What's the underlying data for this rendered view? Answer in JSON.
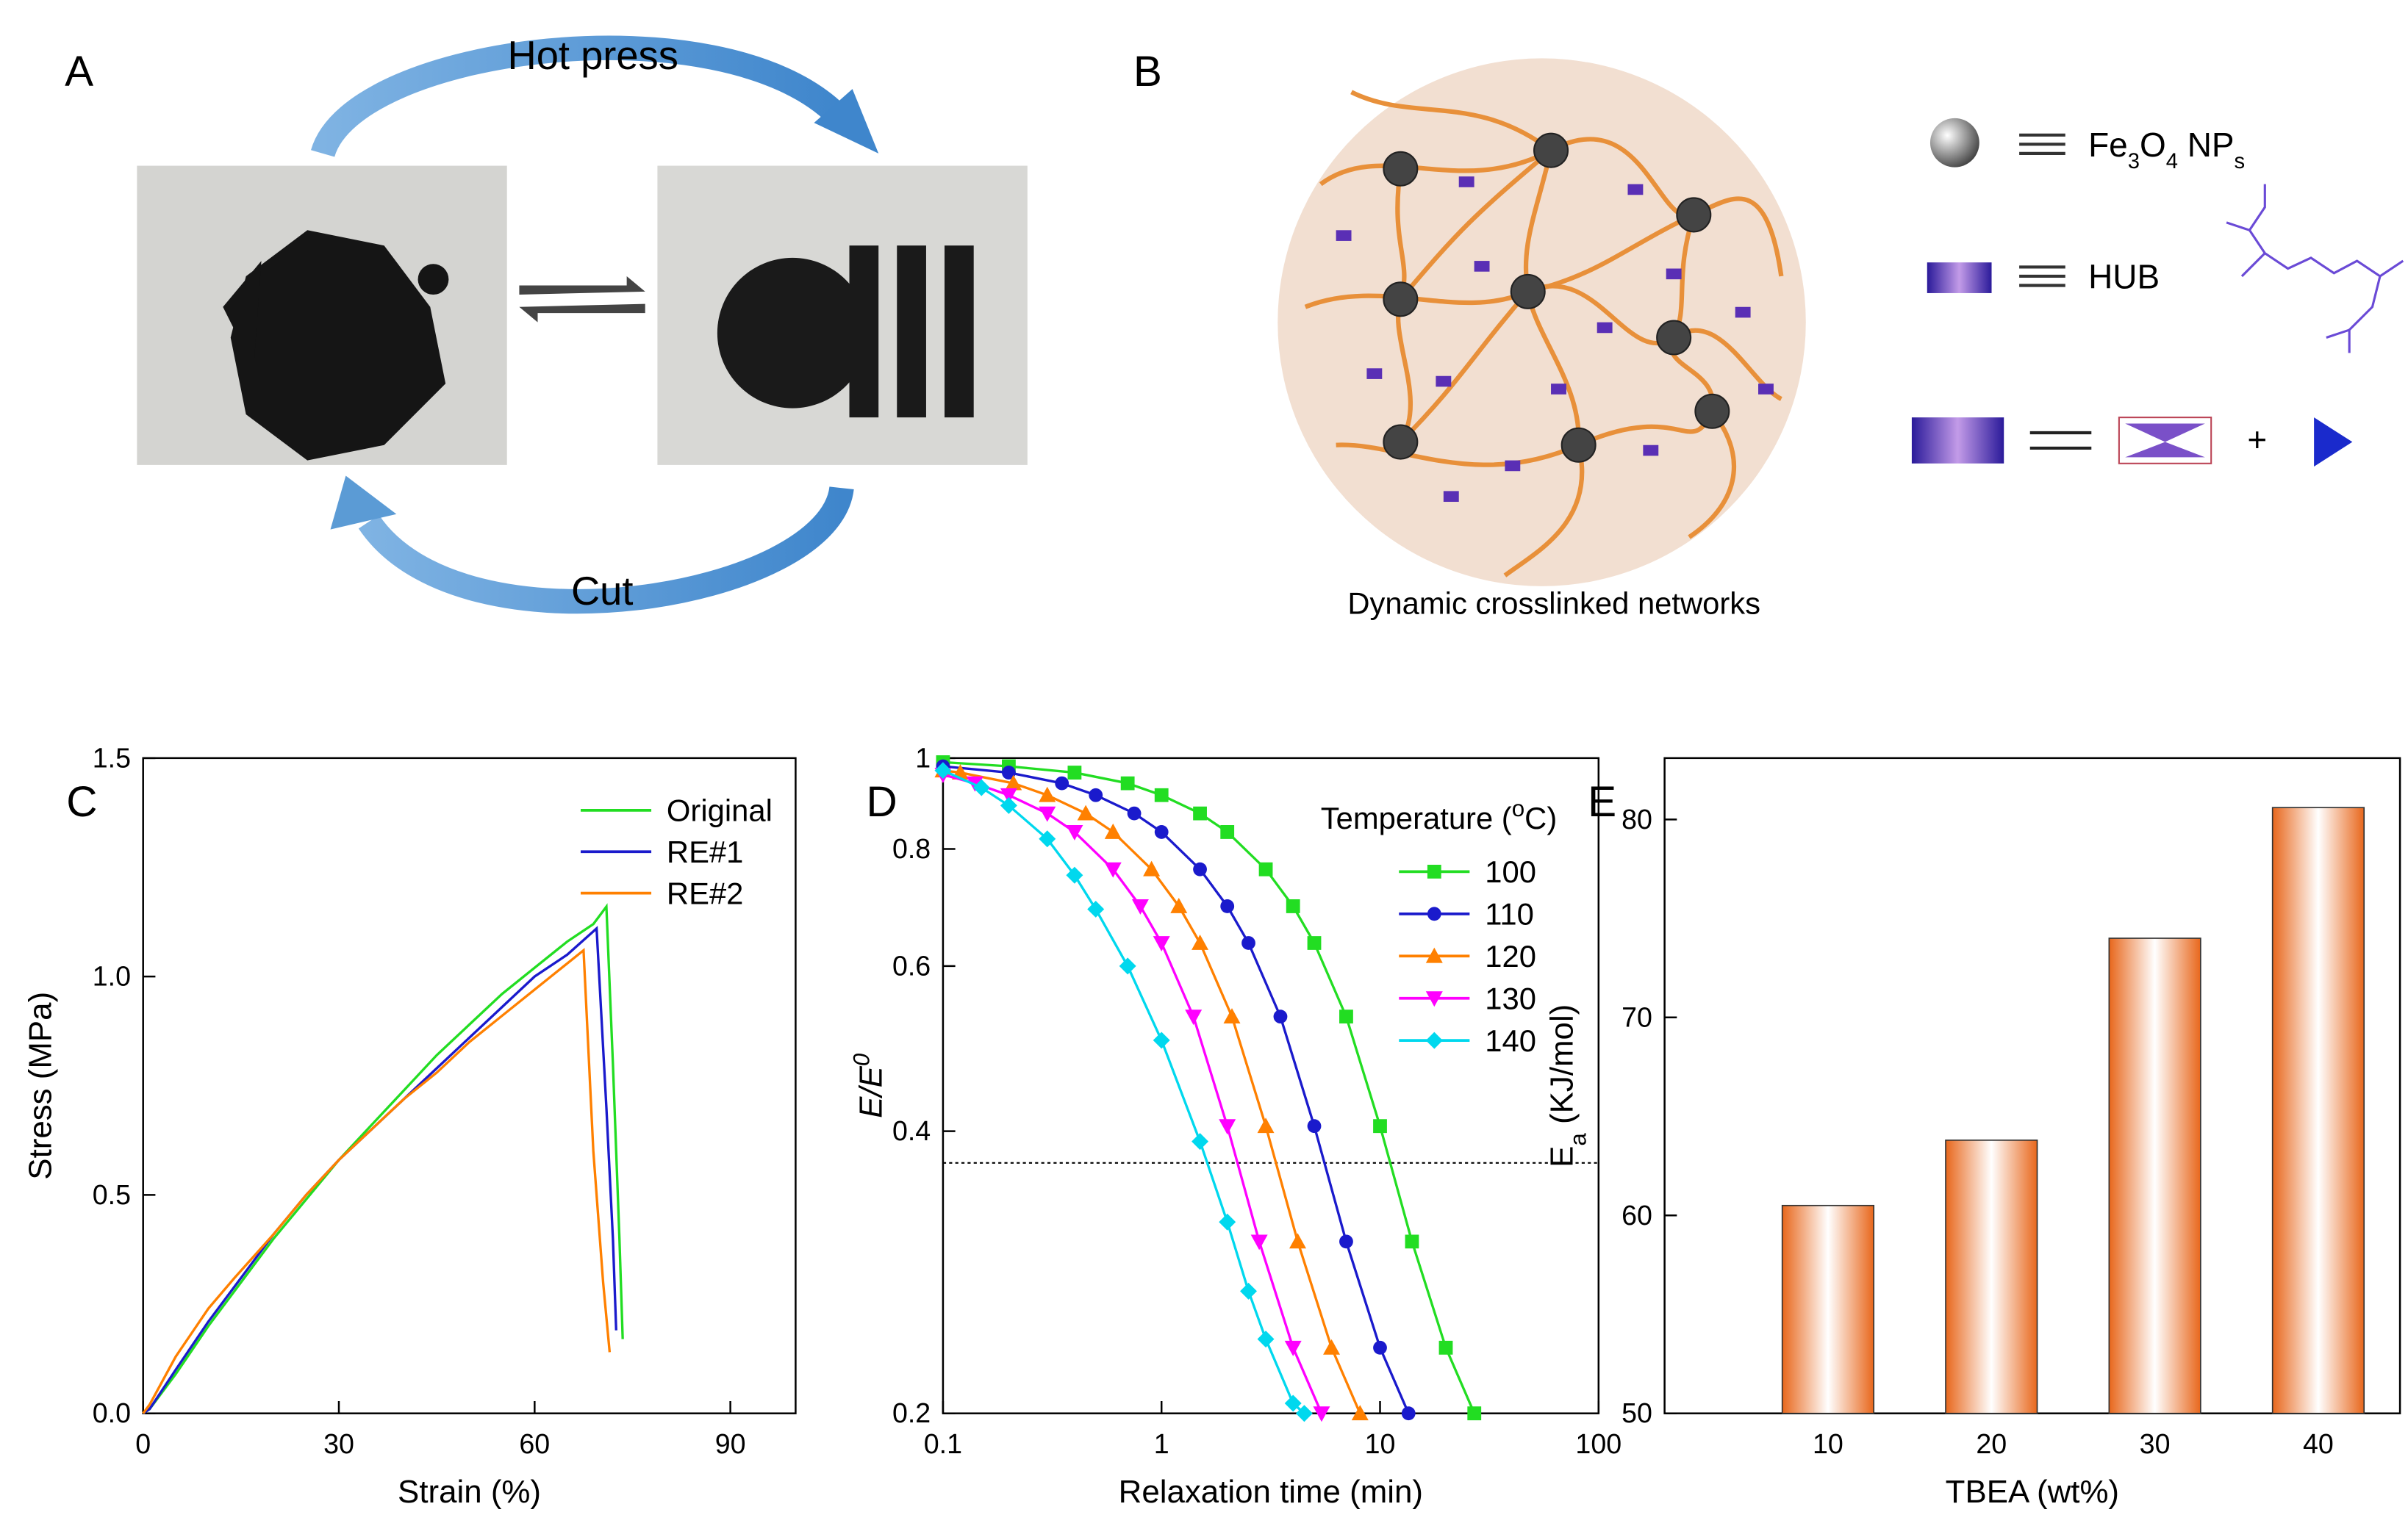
{
  "panel_a": {
    "label": "A",
    "top_arrow": "Hot press",
    "bottom_arrow": "Cut"
  },
  "panel_b": {
    "label": "B",
    "fe3o4": [
      "Fe",
      "3",
      "O",
      "4",
      " NP",
      "s"
    ],
    "hub": "HUB",
    "plus": "+",
    "caption": "Dynamic crosslinked networks"
  },
  "chart_data": [
    {
      "type": "line",
      "label": "C",
      "xlabel": "Strain (%)",
      "ylabel": "Stress (MPa)",
      "xlim": [
        0,
        100
      ],
      "ylim": [
        0,
        1.5
      ],
      "xticks": [
        0,
        30,
        60,
        90
      ],
      "yticks": [
        {
          "value": 0,
          "label": "0.0"
        },
        0.5,
        {
          "value": 1,
          "label": "1.0"
        },
        1.5
      ],
      "series": [
        {
          "name": "Original",
          "color": "#22dd22",
          "x": [
            0,
            1,
            5,
            10,
            15,
            20,
            25,
            30,
            35,
            40,
            45,
            50,
            55,
            60,
            65,
            69,
            71,
            72,
            73,
            73.5
          ],
          "values": [
            0,
            0.01,
            0.09,
            0.2,
            0.3,
            0.4,
            0.49,
            0.58,
            0.66,
            0.74,
            0.82,
            0.89,
            0.96,
            1.02,
            1.08,
            1.12,
            1.16,
            0.8,
            0.4,
            0.17
          ]
        },
        {
          "name": "RE#1",
          "color": "#1a1acc",
          "x": [
            0,
            1,
            5,
            10,
            15,
            20,
            25,
            30,
            35,
            40,
            45,
            50,
            55,
            60,
            65,
            69.5,
            71,
            72,
            72.5
          ],
          "values": [
            0,
            0.01,
            0.1,
            0.21,
            0.31,
            0.41,
            0.5,
            0.58,
            0.65,
            0.72,
            0.79,
            0.86,
            0.93,
            1.0,
            1.05,
            1.11,
            0.7,
            0.4,
            0.19
          ]
        },
        {
          "name": "RE#2",
          "color": "#ff8000",
          "x": [
            0,
            1,
            5,
            10,
            14,
            20,
            25,
            30,
            35,
            40,
            45,
            50,
            55,
            60,
            65,
            67.5,
            69,
            70.5,
            71.5
          ],
          "values": [
            0,
            0.02,
            0.13,
            0.24,
            0.31,
            0.41,
            0.5,
            0.58,
            0.65,
            0.72,
            0.78,
            0.85,
            0.91,
            0.97,
            1.03,
            1.06,
            0.6,
            0.3,
            0.14
          ]
        }
      ],
      "legend": "upper right"
    },
    {
      "type": "line",
      "label": "D",
      "xlabel": "Relaxation time (min)",
      "ylabel": [
        "E/E",
        "0"
      ],
      "xscale": "log",
      "yscale": "log",
      "xlim": [
        0.1,
        100
      ],
      "ylim": [
        0.2,
        1
      ],
      "xticks": [
        0.1,
        1,
        10,
        100
      ],
      "yticks": [
        0.2,
        0.4,
        0.6,
        0.8,
        1
      ],
      "reference_y": 0.37,
      "legend_title": [
        "Temperature (",
        "o",
        "C)"
      ],
      "legend": "upper right",
      "series": [
        {
          "name": "100",
          "color": "#22dd22",
          "marker": "square",
          "x": [
            0.1,
            0.2,
            0.4,
            0.7,
            1,
            1.5,
            2,
            3,
            4,
            5,
            7,
            10,
            14,
            20,
            27
          ],
          "values": [
            0.99,
            0.98,
            0.965,
            0.94,
            0.913,
            0.873,
            0.834,
            0.761,
            0.695,
            0.635,
            0.53,
            0.405,
            0.305,
            0.235,
            0.2
          ]
        },
        {
          "name": "110",
          "color": "#1a1acc",
          "marker": "circle",
          "x": [
            0.1,
            0.2,
            0.35,
            0.5,
            0.75,
            1,
            1.5,
            2,
            2.5,
            3.5,
            5,
            7,
            10,
            13.5
          ],
          "values": [
            0.98,
            0.965,
            0.94,
            0.913,
            0.873,
            0.834,
            0.761,
            0.695,
            0.635,
            0.53,
            0.405,
            0.305,
            0.235,
            0.2
          ]
        },
        {
          "name": "120",
          "color": "#ff8000",
          "marker": "triangle-up",
          "x": [
            0.1,
            0.12,
            0.21,
            0.3,
            0.45,
            0.6,
            0.9,
            1.2,
            1.5,
            2.1,
            3,
            4.2,
            6,
            8.1
          ],
          "values": [
            0.97,
            0.965,
            0.94,
            0.913,
            0.873,
            0.834,
            0.761,
            0.695,
            0.635,
            0.53,
            0.405,
            0.305,
            0.235,
            0.2
          ]
        },
        {
          "name": "130",
          "color": "#ff00ff",
          "marker": "triangle-down",
          "x": [
            0.1,
            0.14,
            0.2,
            0.3,
            0.4,
            0.6,
            0.8,
            1,
            1.4,
            2,
            2.8,
            4,
            5.4
          ],
          "values": [
            0.96,
            0.94,
            0.913,
            0.873,
            0.834,
            0.761,
            0.695,
            0.635,
            0.53,
            0.405,
            0.305,
            0.235,
            0.2
          ]
        },
        {
          "name": "140",
          "color": "#00d8ee",
          "marker": "diamond",
          "x": [
            0.1,
            0.15,
            0.2,
            0.3,
            0.4,
            0.5,
            0.7,
            1,
            1.5,
            2,
            2.5,
            3,
            4,
            4.5
          ],
          "values": [
            0.97,
            0.93,
            0.89,
            0.82,
            0.75,
            0.69,
            0.6,
            0.5,
            0.39,
            0.32,
            0.27,
            0.24,
            0.205,
            0.2
          ]
        }
      ]
    },
    {
      "type": "bar",
      "label": "E",
      "xlabel": "TBEA (wt%)",
      "ylabel": [
        "E",
        "a",
        " (KJ/mol)"
      ],
      "xlim": [
        0,
        45
      ],
      "ylim": [
        50,
        83.1
      ],
      "xticks": [
        10,
        20,
        30,
        40
      ],
      "yticks": [
        50,
        60,
        70,
        80
      ],
      "x": [
        10,
        20,
        30,
        40
      ],
      "values": [
        60.5,
        63.8,
        74.0,
        80.6
      ],
      "color": "#e8671c"
    }
  ]
}
